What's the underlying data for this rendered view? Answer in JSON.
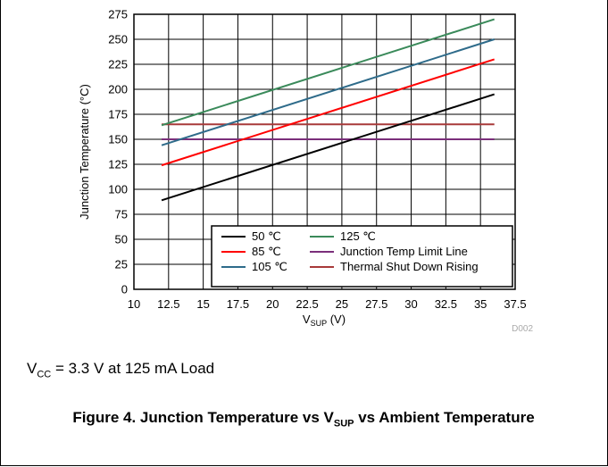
{
  "chart_data": {
    "type": "line",
    "ylabel": "Junction Temperature (°C)",
    "xlabel_main": "V",
    "xlabel_sub": "SUP",
    "xlabel_unit": "(V)",
    "figure_id": "D002",
    "xlim": [
      10,
      37.5
    ],
    "ylim": [
      0,
      275
    ],
    "xticks": [
      "10",
      "12.5",
      "15",
      "17.5",
      "20",
      "22.5",
      "25",
      "27.5",
      "30",
      "32.5",
      "35",
      "37.5"
    ],
    "yticks": [
      "0",
      "25",
      "50",
      "75",
      "100",
      "125",
      "150",
      "175",
      "200",
      "225",
      "250",
      "275"
    ],
    "grid": true,
    "legend_position": "bottom-right",
    "series": [
      {
        "name": "50 ℃",
        "color": "#000000",
        "x": [
          12,
          36
        ],
        "y": [
          89,
          195
        ]
      },
      {
        "name": "85 ℃",
        "color": "#ff0000",
        "x": [
          12,
          36
        ],
        "y": [
          124,
          230
        ]
      },
      {
        "name": "105 ℃",
        "color": "#2e6b8a",
        "x": [
          12,
          36
        ],
        "y": [
          144,
          250
        ]
      },
      {
        "name": "125 ℃",
        "color": "#3a8a5a",
        "x": [
          12,
          36
        ],
        "y": [
          164,
          270
        ]
      },
      {
        "name": "Junction Temp Limit Line",
        "color": "#7b2f7b",
        "x": [
          12,
          36
        ],
        "y": [
          150,
          150
        ]
      },
      {
        "name": "Thermal Shut Down Rising",
        "color": "#a83a3a",
        "x": [
          12,
          36
        ],
        "y": [
          165,
          165
        ]
      }
    ],
    "legend_order": [
      0,
      3,
      1,
      4,
      2,
      5
    ]
  },
  "note": {
    "v": "V",
    "sub": "CC",
    "rest": " = 3.3 V at 125 mA Load"
  },
  "caption": {
    "part1": "Figure 4. Junction Temperature vs V",
    "sub": "SUP",
    "part2": " vs Ambient Temperature"
  }
}
